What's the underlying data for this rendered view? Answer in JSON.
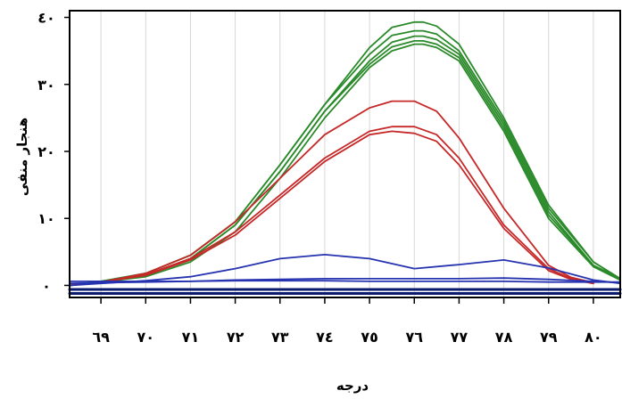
{
  "chart_data": {
    "type": "line",
    "ylabel": "هنجار منفی",
    "xlabel": "درجه",
    "xlim": [
      68.3,
      80.6
    ],
    "ylim": [
      -1.8,
      41
    ],
    "x_ticks": [
      69,
      70,
      71,
      72,
      73,
      74,
      75,
      76,
      77,
      78,
      79,
      80
    ],
    "x_tick_labels": [
      "٦٩",
      "٧٠",
      "٧١",
      "٧٢",
      "٧٣",
      "٧٤",
      "٧٥",
      "٧٦",
      "٧٧",
      "٧٨",
      "٧٩",
      "٨٠"
    ],
    "y_ticks": [
      0,
      10,
      20,
      30,
      40
    ],
    "y_tick_labels": [
      "٠",
      "١٠",
      "٢٠",
      "٣٠",
      "٤٠"
    ],
    "grid": true,
    "colors": {
      "green": "#2a8a2a",
      "red": "#c62828",
      "blue": "#2633b0",
      "navy": "#0a1a6e"
    },
    "series": [
      {
        "color": "green",
        "x": [
          68.3,
          69,
          70,
          71,
          72,
          73,
          74,
          75,
          75.5,
          76,
          76.2,
          76.5,
          77,
          78,
          79,
          80,
          80.6
        ],
        "y": [
          0,
          0.6,
          1.8,
          4.5,
          9.5,
          18,
          27,
          35.5,
          38.5,
          39.3,
          39.3,
          38.7,
          36,
          25,
          12,
          3.5,
          1
        ]
      },
      {
        "color": "green",
        "x": [
          68.3,
          69,
          70,
          71,
          72,
          73,
          74,
          75,
          75.5,
          76,
          76.2,
          76.5,
          77,
          78,
          79,
          80,
          80.6
        ],
        "y": [
          0,
          0.6,
          1.8,
          4.5,
          9.5,
          18,
          27,
          34.5,
          37.3,
          38,
          38,
          37.5,
          35,
          24.5,
          11.5,
          3.5,
          1
        ]
      },
      {
        "color": "green",
        "x": [
          68.3,
          69,
          70,
          71,
          72,
          73,
          74,
          75,
          75.5,
          76,
          76.2,
          76.5,
          77,
          78,
          79,
          80,
          80.6
        ],
        "y": [
          0,
          0.5,
          1.5,
          4,
          9,
          17,
          26,
          33.5,
          36.3,
          37.2,
          37.2,
          36.7,
          34.5,
          24,
          11,
          3,
          1
        ]
      },
      {
        "color": "green",
        "x": [
          68.3,
          69,
          70,
          71,
          72,
          73,
          74,
          75,
          75.5,
          76,
          76.2,
          76.5,
          77,
          78,
          79,
          80,
          80.6
        ],
        "y": [
          0,
          0.5,
          1.5,
          4,
          9,
          17,
          26,
          33,
          35.6,
          36.5,
          36.5,
          36,
          34,
          23.5,
          10.5,
          3,
          1
        ]
      },
      {
        "color": "green",
        "x": [
          68.3,
          69,
          70,
          71,
          72,
          73,
          74,
          75,
          75.5,
          76,
          76.2,
          76.5,
          77,
          78,
          79,
          80,
          80.6
        ],
        "y": [
          0,
          0.5,
          1.3,
          3.5,
          8,
          16,
          25,
          32.5,
          35,
          36,
          36,
          35.5,
          33.5,
          23,
          10,
          2.8,
          0.8
        ]
      },
      {
        "color": "red",
        "x": [
          68.3,
          69,
          70,
          71,
          72,
          73,
          74,
          75,
          75.5,
          76,
          76.5,
          77,
          78,
          79,
          79.5,
          80
        ],
        "y": [
          0,
          0.5,
          1.8,
          4.5,
          9.5,
          16,
          22.5,
          26.5,
          27.5,
          27.5,
          26,
          22,
          11.5,
          3,
          1.2,
          0.4
        ]
      },
      {
        "color": "red",
        "x": [
          68.3,
          69,
          70,
          71,
          72,
          73,
          74,
          75,
          75.5,
          76,
          76.5,
          77,
          78,
          79,
          79.5,
          80
        ],
        "y": [
          0,
          0.5,
          1.6,
          4,
          8,
          13.5,
          19,
          23,
          23.7,
          23.7,
          22.5,
          19,
          9,
          2.5,
          1,
          0.3
        ]
      },
      {
        "color": "red",
        "x": [
          68.3,
          69,
          70,
          71,
          72,
          73,
          74,
          75,
          75.5,
          76,
          76.5,
          77,
          78,
          79,
          79.5,
          80
        ],
        "y": [
          0,
          0.5,
          1.5,
          3.8,
          7.5,
          13,
          18.5,
          22.5,
          23,
          22.7,
          21.5,
          18,
          8.5,
          2.2,
          0.9,
          0.3
        ]
      },
      {
        "color": "blue",
        "x": [
          68.3,
          69,
          70,
          71,
          72,
          73,
          74,
          75,
          76,
          77,
          78,
          79,
          80,
          80.6
        ],
        "y": [
          0,
          0.3,
          0.7,
          1.3,
          2.5,
          4,
          4.6,
          4,
          2.5,
          3.1,
          3.8,
          2.6,
          0.8,
          0.3
        ]
      },
      {
        "color": "blue",
        "x": [
          68.3,
          69,
          70,
          71,
          72,
          73,
          74,
          75,
          76,
          77,
          78,
          79,
          80,
          80.6
        ],
        "y": [
          0.3,
          0.4,
          0.5,
          0.6,
          0.8,
          0.9,
          1,
          1,
          1,
          1,
          1.1,
          0.9,
          0.6,
          0.4
        ]
      },
      {
        "color": "blue",
        "x": [
          68.3,
          69,
          70,
          71,
          72,
          73,
          74,
          75,
          76,
          77,
          78,
          79,
          80,
          80.6
        ],
        "y": [
          0.6,
          0.6,
          0.6,
          0.6,
          0.7,
          0.7,
          0.7,
          0.6,
          0.6,
          0.6,
          0.6,
          0.5,
          0.5,
          0.5
        ]
      },
      {
        "color": "navy",
        "x": [
          68.3,
          70,
          72,
          74,
          76,
          78,
          80,
          80.6
        ],
        "y": [
          -0.6,
          -0.6,
          -0.6,
          -0.6,
          -0.6,
          -0.6,
          -0.6,
          -0.6
        ]
      },
      {
        "color": "navy",
        "x": [
          68.3,
          70,
          72,
          74,
          76,
          78,
          80,
          80.6
        ],
        "y": [
          -1.2,
          -1.2,
          -1.2,
          -1.2,
          -1.2,
          -1.2,
          -1.2,
          -1.2
        ]
      }
    ]
  }
}
